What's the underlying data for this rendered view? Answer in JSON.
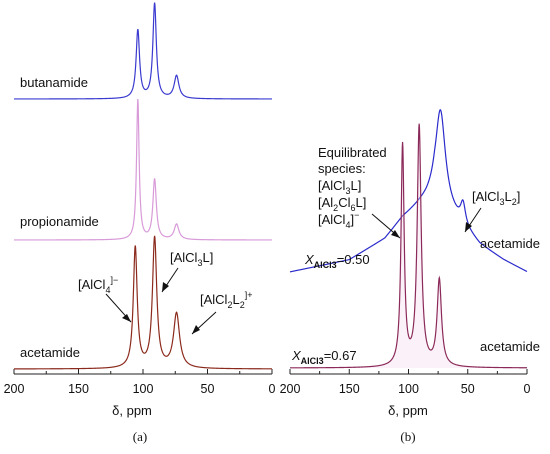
{
  "chart_data": [
    {
      "type": "line",
      "panel": "(a)",
      "xlabel": "δ, ppm",
      "xticks": [
        "200",
        "150",
        "100",
        "50",
        "0"
      ],
      "xlim": [
        200,
        0
      ],
      "series": [
        {
          "name": "butanamide",
          "color": "#3a3ad0",
          "peaks": [
            {
              "x": 104,
              "height": 0.72,
              "width": 1.6
            },
            {
              "x": 91,
              "height": 1.0,
              "width": 1.6
            },
            {
              "x": 74,
              "height": 0.24,
              "width": 2.2
            }
          ]
        },
        {
          "name": "propionamide",
          "color": "#d89ad8",
          "peaks": [
            {
              "x": 104,
              "height": 1.0,
              "width": 1.2
            },
            {
              "x": 91,
              "height": 0.43,
              "width": 1.6
            },
            {
              "x": 74,
              "height": 0.11,
              "width": 2.2
            }
          ]
        },
        {
          "name": "acetamide",
          "color": "#8b2a1c",
          "peaks": [
            {
              "x": 106,
              "height": 0.93,
              "width": 1.8
            },
            {
              "x": 91,
              "height": 1.0,
              "width": 2.0
            },
            {
              "x": 74,
              "height": 0.42,
              "width": 2.8
            }
          ]
        }
      ],
      "annotations": [
        {
          "id": "alcl4",
          "base": "[AlCl",
          "sub": "4",
          "sup": "]−",
          "tail": ""
        },
        {
          "id": "alcl3l",
          "base": "[AlCl",
          "sub": "3",
          "sup": "",
          "tail": "L]"
        },
        {
          "id": "alcl2l2",
          "base": "[AlCl",
          "sub": "2",
          "mid": "L",
          "sub2": "2",
          "sup": "]+",
          "tail": ""
        }
      ]
    },
    {
      "type": "line",
      "panel": "(b)",
      "xlabel": "δ, ppm",
      "xticks": [
        "200",
        "150",
        "100",
        "50",
        "0"
      ],
      "xlim": [
        200,
        0
      ],
      "series": [
        {
          "name": "acetamide",
          "x_label": "X",
          "x_sub": "AlCl3",
          "x_value": "=0.50",
          "color": "#2b2bcc",
          "baseline": [
            [
              200,
              0.0
            ],
            [
              150,
              0.08
            ],
            [
              120,
              0.22
            ],
            [
              105,
              0.36
            ],
            [
              90,
              0.45
            ],
            [
              78,
              0.5
            ],
            [
              60,
              0.35
            ],
            [
              40,
              0.18
            ],
            [
              20,
              0.08
            ],
            [
              0,
              0.0
            ]
          ],
          "peaks": [
            {
              "x": 73,
              "height": 0.62,
              "width": 5.0
            },
            {
              "x": 54,
              "height": 0.14,
              "width": 2.5
            }
          ]
        },
        {
          "name": "acetamide",
          "x_label": "X",
          "x_sub": "AlCl3",
          "x_value": "=0.67",
          "color": "#8b2a5a",
          "peaks": [
            {
              "x": 105,
              "height": 0.92,
              "width": 1.6
            },
            {
              "x": 91,
              "height": 1.0,
              "width": 2.0
            },
            {
              "x": 74,
              "height": 0.36,
              "width": 2.2
            }
          ]
        }
      ],
      "annotations": {
        "equilibrated": [
          "Equilibrated",
          "species:"
        ],
        "species": [
          {
            "base": "[AlCl",
            "sub": "3",
            "tail": "L]",
            "sup": ""
          },
          {
            "base": "[Al",
            "sub": "2",
            "mid": "Cl",
            "sub2": "6",
            "tail": "L]",
            "sup": ""
          },
          {
            "base": "[AlCl",
            "sub": "4",
            "tail": "]",
            "sup": "−"
          }
        ],
        "alcl3l2": {
          "base": "[AlCl",
          "sub": "3",
          "mid": "L",
          "sub2": "2",
          "tail": "]"
        }
      }
    }
  ]
}
